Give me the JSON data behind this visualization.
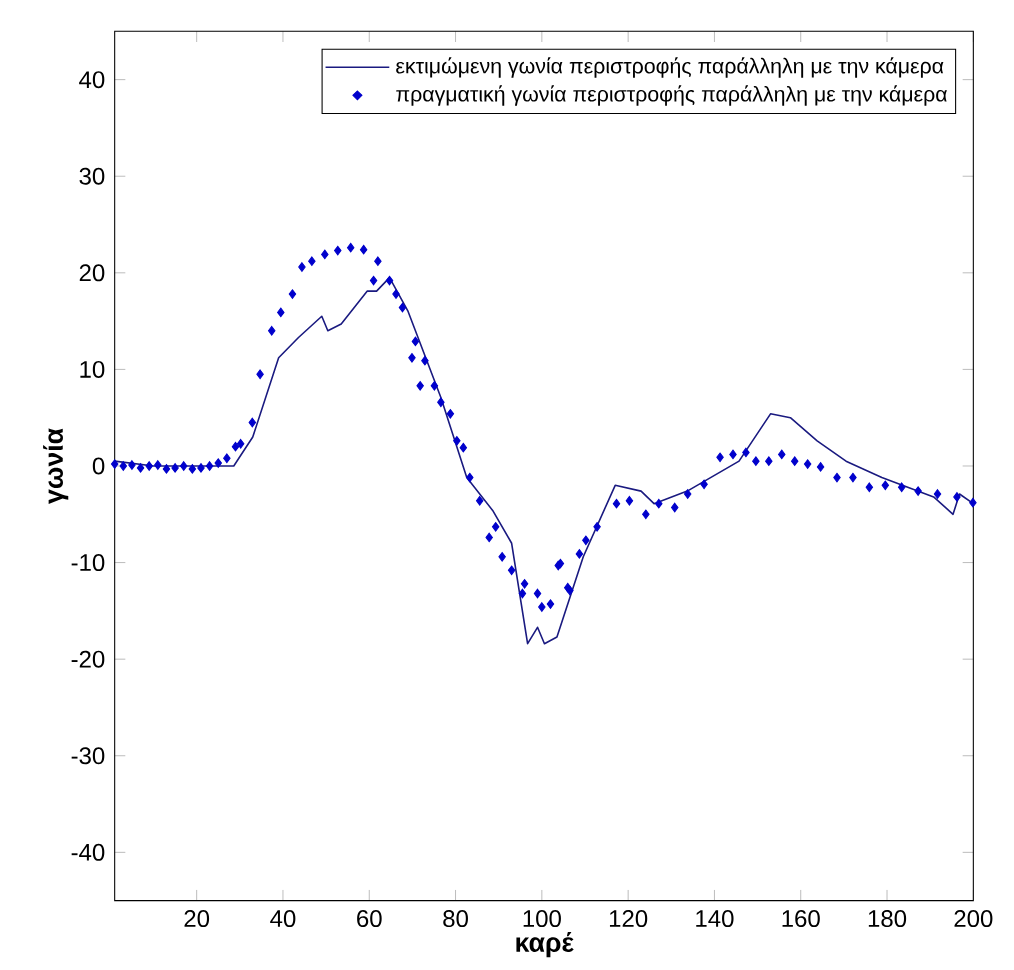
{
  "chart_data": {
    "type": "line",
    "xlabel": "καρέ",
    "ylabel": "γωνία",
    "xlim": [
      1,
      200
    ],
    "ylim": [
      -45,
      45
    ],
    "xticks": [
      20,
      40,
      60,
      80,
      100,
      120,
      140,
      160,
      180,
      200
    ],
    "yticks": [
      -40,
      -30,
      -20,
      -10,
      0,
      10,
      20,
      30,
      40
    ],
    "grid": false,
    "legend": "top right",
    "series": [
      {
        "name": "εκτιμώμενη γωνία περιστροφής παράλληλη με την κάμερα",
        "color": "#1a1a80",
        "line_style": "solid",
        "marker": "none",
        "x": [
          1,
          10,
          20,
          28.6,
          33,
          39,
          43.6,
          49,
          50.4,
          53.5,
          59.5,
          61.7,
          64.7,
          69,
          76.6,
          82.6,
          88.6,
          93,
          96.7,
          99,
          100.6,
          103.5,
          109.6,
          117,
          123,
          126,
          133.7,
          145.7,
          153,
          157.6,
          163.8,
          170.5,
          178.8,
          190.8,
          195.3,
          196.8,
          200
        ],
        "values": [
          0.5,
          0,
          0,
          0,
          3,
          11.2,
          13.3,
          15.5,
          14,
          14.7,
          18.1,
          18.1,
          19.5,
          16,
          7.1,
          -1.2,
          -4.6,
          -8,
          -18.4,
          -16.7,
          -18.4,
          -17.7,
          -9.4,
          -2,
          -2.6,
          -3.9,
          -2.6,
          0.5,
          5.4,
          5,
          2.6,
          0.5,
          -1.2,
          -3.2,
          -5,
          -2.9,
          -3.9
        ]
      },
      {
        "name": "πραγματική γωνία περιστροφής παράλληλη με την κάμερα",
        "type": "scatter",
        "color": "#0000cc",
        "marker": "diamond",
        "x": [
          1,
          3,
          5,
          7,
          9,
          11,
          13,
          15,
          17,
          19,
          21,
          23,
          25,
          27,
          29,
          30.2,
          32.9,
          34.7,
          37.4,
          39.5,
          42.2,
          44.4,
          46.7,
          49.7,
          52.7,
          55.7,
          58.7,
          61,
          62,
          64.7,
          66.2,
          67.7,
          69.9,
          70.7,
          71.8,
          72.9,
          75.1,
          76.6,
          78.8,
          80.3,
          81.8,
          83.3,
          85.6,
          87.8,
          89.3,
          90.8,
          93,
          95.5,
          96,
          99,
          100,
          102,
          103.8,
          104.3,
          106,
          106.5,
          108.7,
          110.2,
          112.8,
          117.3,
          120.3,
          124.1,
          127.1,
          130.8,
          133.8,
          137.6,
          141.3,
          144.3,
          147.3,
          149.6,
          152.6,
          155.6,
          158.6,
          161.6,
          164.6,
          168.4,
          172.1,
          175.9,
          179.6,
          183.4,
          187.2,
          191.7,
          196.2,
          199.9
        ],
        "values": [
          0.2,
          0,
          0.1,
          -0.2,
          0,
          0.1,
          -0.3,
          -0.2,
          0,
          -0.3,
          -0.2,
          0,
          0.3,
          0.8,
          2,
          2.3,
          4.5,
          9.5,
          14,
          15.9,
          17.8,
          20.6,
          21.2,
          21.9,
          22.3,
          22.6,
          22.4,
          19.2,
          21.2,
          19.2,
          17.8,
          16.4,
          11.2,
          12.9,
          8.3,
          10.9,
          8.3,
          6.6,
          5.4,
          2.6,
          1.9,
          -1.2,
          -3.6,
          -7.4,
          -6.3,
          -9.4,
          -10.8,
          -13.2,
          -12.2,
          -13.2,
          -14.6,
          -14.3,
          -10.3,
          -10.1,
          -12.6,
          -12.9,
          -9.1,
          -7.7,
          -6.3,
          -3.9,
          -3.6,
          -5,
          -3.9,
          -4.3,
          -2.9,
          -1.9,
          0.9,
          1.2,
          1.4,
          0.5,
          0.5,
          1.2,
          0.5,
          0.2,
          -0.1,
          -1.2,
          -1.2,
          -2.2,
          -2,
          -2.2,
          -2.6,
          -2.9,
          -3.2,
          -3.8
        ]
      }
    ]
  }
}
